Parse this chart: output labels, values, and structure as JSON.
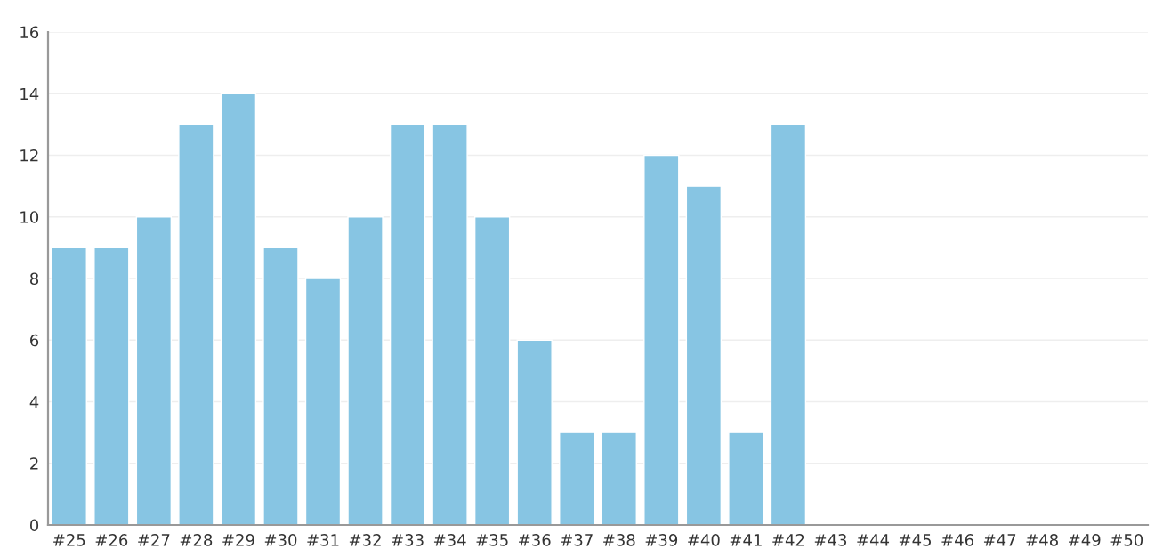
{
  "chart_data": {
    "type": "bar",
    "categories": [
      "#25",
      "#26",
      "#27",
      "#28",
      "#29",
      "#30",
      "#31",
      "#32",
      "#33",
      "#34",
      "#35",
      "#36",
      "#37",
      "#38",
      "#39",
      "#40",
      "#41",
      "#42",
      "#43",
      "#44",
      "#45",
      "#46",
      "#47",
      "#48",
      "#49",
      "#50"
    ],
    "values": [
      9,
      9,
      10,
      13,
      14,
      9,
      8,
      10,
      13,
      13,
      10,
      6,
      3,
      3,
      12,
      11,
      3,
      13,
      null,
      null,
      null,
      null,
      null,
      null,
      null,
      null
    ],
    "color": "#87c5e3",
    "ylim": [
      0,
      16
    ],
    "yticks": [
      0,
      2,
      4,
      6,
      8,
      10,
      12,
      14,
      16
    ],
    "grid": "y"
  }
}
